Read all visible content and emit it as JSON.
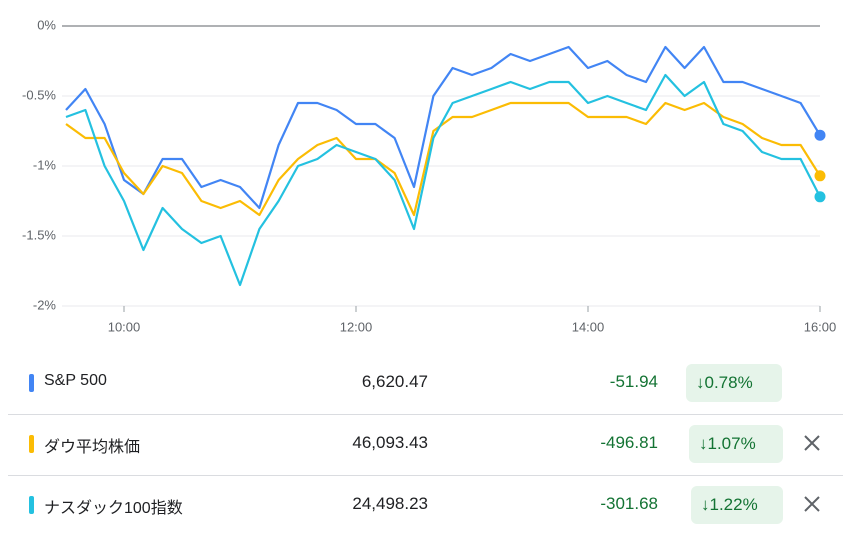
{
  "chart_data": {
    "type": "line",
    "x": [
      9.5,
      9.667,
      9.833,
      10.0,
      10.167,
      10.333,
      10.5,
      10.667,
      10.833,
      11.0,
      11.167,
      11.333,
      11.5,
      11.667,
      11.833,
      12.0,
      12.167,
      12.333,
      12.5,
      12.667,
      12.833,
      13.0,
      13.167,
      13.333,
      13.5,
      13.667,
      13.833,
      14.0,
      14.167,
      14.333,
      14.5,
      14.667,
      14.833,
      15.0,
      15.167,
      15.333,
      15.5,
      15.667,
      15.833,
      16.0
    ],
    "series": [
      {
        "name": "S&P 500",
        "color": "#4285f4",
        "values": [
          -0.6,
          -0.45,
          -0.7,
          -1.1,
          -1.2,
          -0.95,
          -0.95,
          -1.15,
          -1.1,
          -1.15,
          -1.3,
          -0.85,
          -0.55,
          -0.55,
          -0.6,
          -0.7,
          -0.7,
          -0.8,
          -1.15,
          -0.5,
          -0.3,
          -0.35,
          -0.3,
          -0.2,
          -0.25,
          -0.2,
          -0.15,
          -0.3,
          -0.25,
          -0.35,
          -0.4,
          -0.15,
          -0.3,
          -0.15,
          -0.4,
          -0.4,
          -0.45,
          -0.5,
          -0.55,
          -0.78
        ]
      },
      {
        "name": "ダウ平均株価",
        "color": "#fbbc04",
        "values": [
          -0.7,
          -0.8,
          -0.8,
          -1.05,
          -1.2,
          -1.0,
          -1.05,
          -1.25,
          -1.3,
          -1.25,
          -1.35,
          -1.1,
          -0.95,
          -0.85,
          -0.8,
          -0.95,
          -0.95,
          -1.05,
          -1.35,
          -0.75,
          -0.65,
          -0.65,
          -0.6,
          -0.55,
          -0.55,
          -0.55,
          -0.55,
          -0.65,
          -0.65,
          -0.65,
          -0.7,
          -0.55,
          -0.6,
          -0.55,
          -0.65,
          -0.7,
          -0.8,
          -0.85,
          -0.85,
          -1.07
        ]
      },
      {
        "name": "ナスダック100指数",
        "color": "#24c1e0",
        "values": [
          -0.65,
          -0.6,
          -1.0,
          -1.25,
          -1.6,
          -1.3,
          -1.45,
          -1.55,
          -1.5,
          -1.85,
          -1.45,
          -1.25,
          -1.0,
          -0.95,
          -0.85,
          -0.9,
          -0.95,
          -1.1,
          -1.45,
          -0.8,
          -0.55,
          -0.5,
          -0.45,
          -0.4,
          -0.45,
          -0.4,
          -0.4,
          -0.55,
          -0.5,
          -0.55,
          -0.6,
          -0.35,
          -0.5,
          -0.4,
          -0.7,
          -0.75,
          -0.9,
          -0.95,
          -0.95,
          -1.22
        ]
      }
    ],
    "xlim": [
      9.5,
      16
    ],
    "xticks": [
      {
        "value": 10,
        "label": "10:00"
      },
      {
        "value": 12,
        "label": "12:00"
      },
      {
        "value": 14,
        "label": "14:00"
      },
      {
        "value": 16,
        "label": "16:00"
      }
    ],
    "ylim": [
      -2,
      0
    ],
    "yticks": [
      {
        "value": 0,
        "label": "0%"
      },
      {
        "value": -0.5,
        "label": "-0.5%"
      },
      {
        "value": -1,
        "label": "-1%"
      },
      {
        "value": -1.5,
        "label": "-1.5%"
      },
      {
        "value": -2,
        "label": "-2%"
      }
    ],
    "grid": true
  },
  "table": {
    "rows": [
      {
        "name": "S&P 500",
        "price": "6,620.47",
        "change": "-51.94",
        "percent": "0.78%"
      },
      {
        "name": "ダウ平均株価",
        "price": "46,093.43",
        "change": "-496.81",
        "percent": "1.07%"
      },
      {
        "name": "ナスダック100指数",
        "price": "24,498.23",
        "change": "-301.68",
        "percent": "1.22%"
      }
    ]
  }
}
